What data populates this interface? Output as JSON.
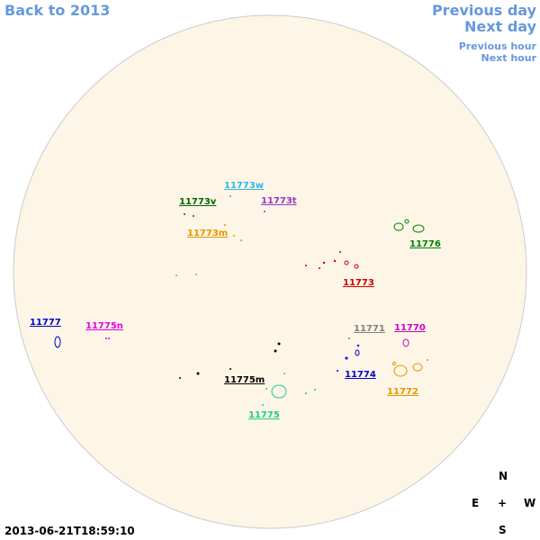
{
  "nav": {
    "back": "Back to 2013",
    "previous_day": "Previous day",
    "next_day": "Next day",
    "previous_hour": "Previous hour",
    "next_hour": "Next hour"
  },
  "regions": [
    {
      "label": "11773w",
      "color": "#33b5e5"
    },
    {
      "label": "11773v",
      "color": "#006600"
    },
    {
      "label": "11773t",
      "color": "#9933cc"
    },
    {
      "label": "11773m",
      "color": "#e69500"
    },
    {
      "label": "11776",
      "color": "#008000"
    },
    {
      "label": "11773",
      "color": "#cc0000"
    },
    {
      "label": "11777",
      "color": "#0000cc"
    },
    {
      "label": "11775n",
      "color": "#e600e6"
    },
    {
      "label": "11771",
      "color": "#808080"
    },
    {
      "label": "11770",
      "color": "#cc00cc"
    },
    {
      "label": "11774",
      "color": "#0000cc"
    },
    {
      "label": "11775m",
      "color": "#000000"
    },
    {
      "label": "11772",
      "color": "#e69500"
    },
    {
      "label": "11775",
      "color": "#22cc88"
    }
  ],
  "compass": {
    "north": "N",
    "east": "E",
    "center": "+",
    "west": "W",
    "south": "S"
  },
  "timestamp": "2013-06-21T18:59:10"
}
